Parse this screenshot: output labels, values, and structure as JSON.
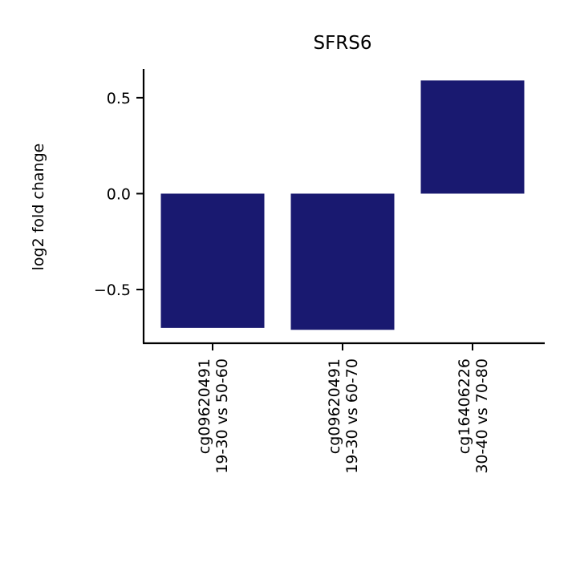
{
  "chart_data": {
    "type": "bar",
    "title": "SFRS6",
    "xlabel": "",
    "ylabel": "log2 fold change",
    "categories": [
      [
        "cg09620491",
        "19-30 vs 50-60"
      ],
      [
        "cg09620491",
        "19-30 vs 60-70"
      ],
      [
        "cg16406226",
        "30-40 vs 70-80"
      ]
    ],
    "values": [
      -0.7,
      -0.71,
      0.59
    ],
    "ylim": [
      -0.78,
      0.65
    ],
    "yticks": [
      0.5,
      0.0,
      -0.5
    ],
    "ytick_labels": [
      "0.5",
      "0.0",
      "−0.5"
    ],
    "bar_color": "#191970",
    "grid": false,
    "legend": "none"
  }
}
